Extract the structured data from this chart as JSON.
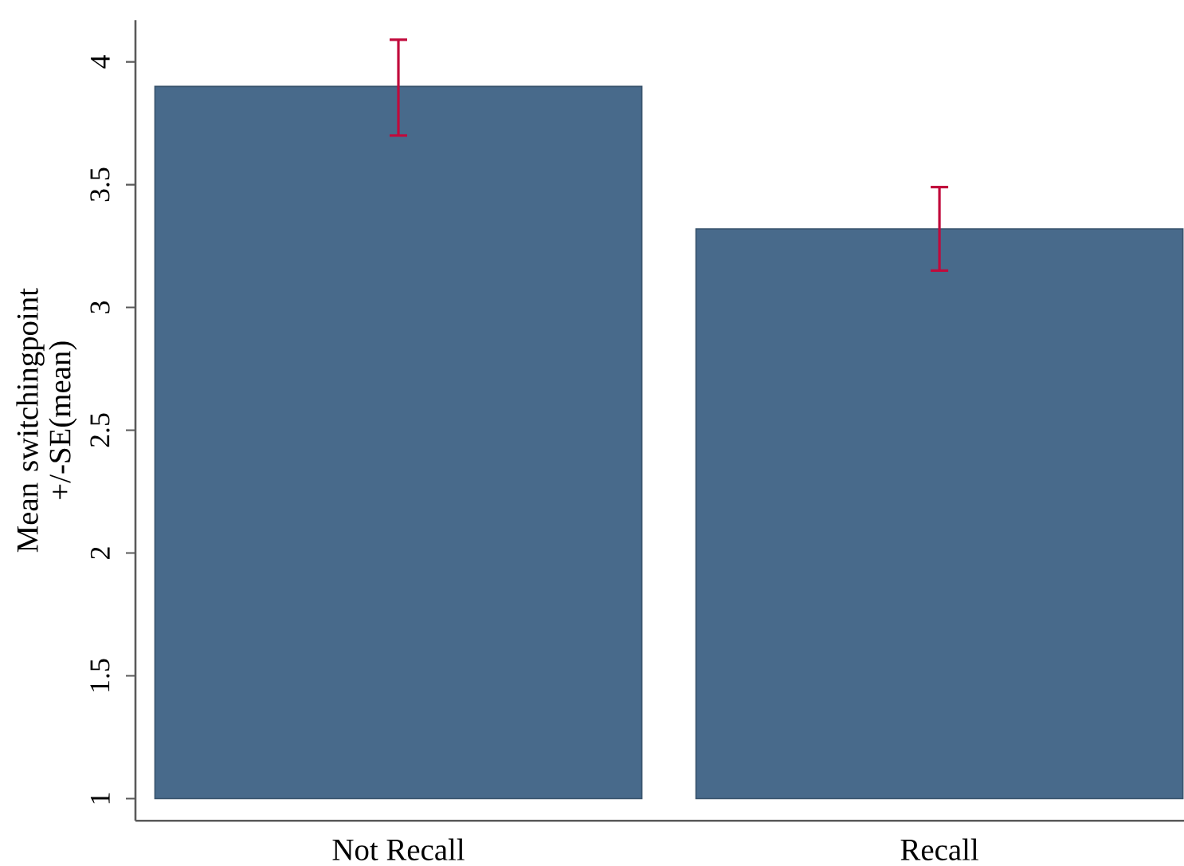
{
  "chart_data": {
    "type": "bar",
    "ylabel": "Mean switchingpoint +/-SE(mean)",
    "categories": [
      "Not Recall",
      "Recall"
    ],
    "base": [
      1,
      1
    ],
    "values": [
      2.9,
      2.32
    ],
    "errors": [
      [
        3.7,
        4.09
      ],
      [
        3.15,
        3.49
      ]
    ],
    "color": "#486a8b",
    "ylim": [
      0.91,
      4.17
    ],
    "yticks": [
      1,
      1.5,
      2,
      2.5,
      3,
      3.5,
      4
    ]
  }
}
